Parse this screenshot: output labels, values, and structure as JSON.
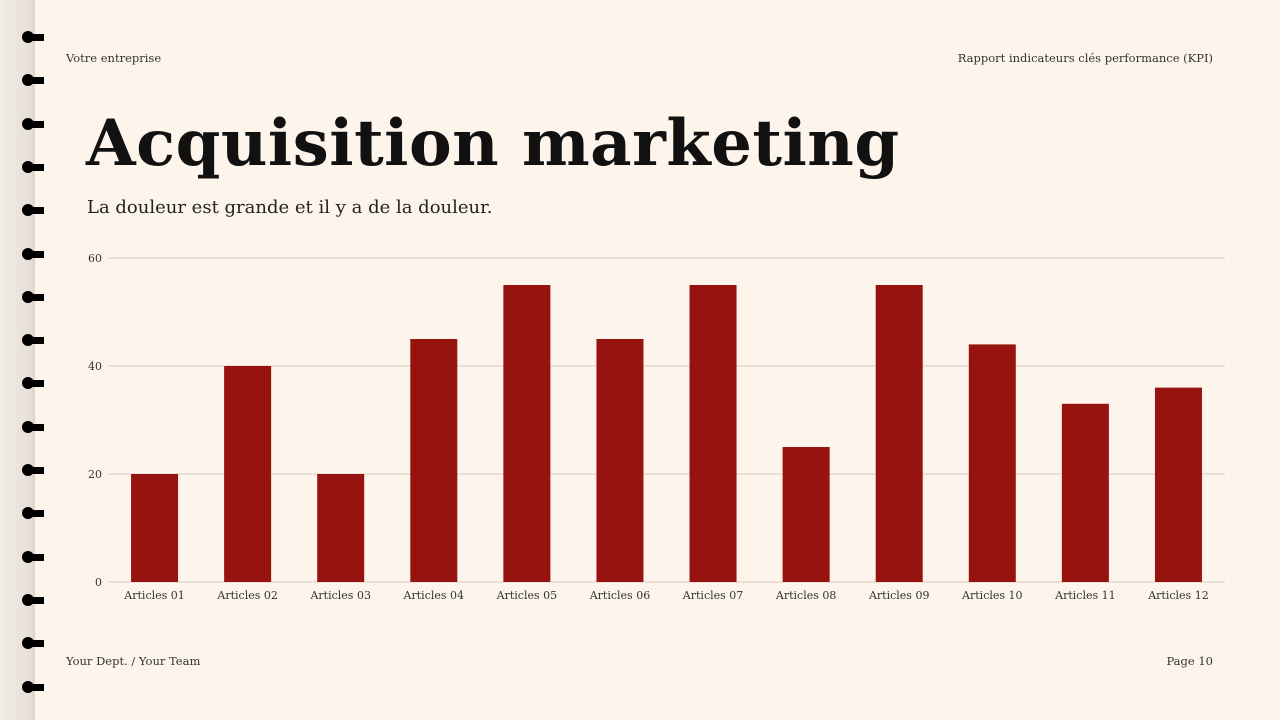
{
  "header": {
    "left": "Votre entreprise",
    "right": "Rapport indicateurs clés performance (KPI)"
  },
  "title": "Acquisition marketing",
  "subtitle": "La douleur est grande et il y a de la douleur.",
  "footer": {
    "left": "Your Dept. / Your Team",
    "right": "Page 10"
  },
  "colors": {
    "bar": "#96130f",
    "grid": "#d9c9bf",
    "background": "#fdf5ec"
  },
  "chart_data": {
    "type": "bar",
    "categories": [
      "Articles 01",
      "Articles 02",
      "Articles 03",
      "Articles 04",
      "Articles 05",
      "Articles 06",
      "Articles 07",
      "Articles 08",
      "Articles 09",
      "Articles 10",
      "Articles 11",
      "Articles 12"
    ],
    "values": [
      20,
      40,
      20,
      45,
      55,
      45,
      55,
      25,
      55,
      44,
      33,
      36
    ],
    "yticks": [
      0,
      20,
      40,
      60
    ],
    "ylim": [
      0,
      60
    ],
    "grid": true,
    "legend": "none"
  }
}
